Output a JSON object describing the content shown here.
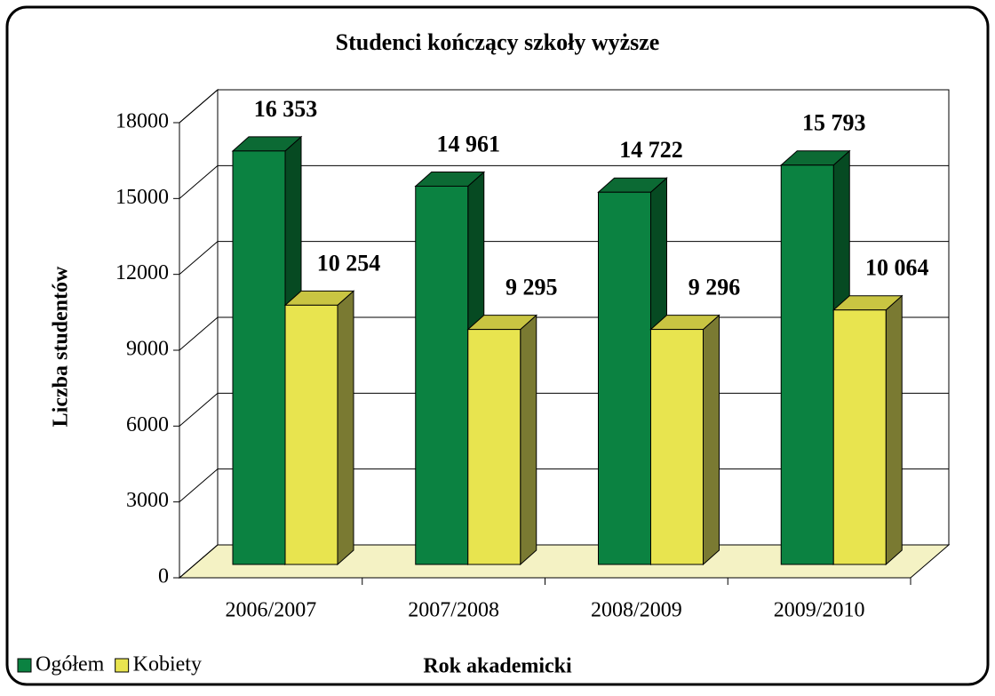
{
  "chart_data": {
    "type": "bar3d",
    "title": "Studenci kończący szkoły wyższe",
    "x_label": "Rok akademicki",
    "y_label": "Liczba studentów",
    "categories": [
      "2006/2007",
      "2007/2008",
      "2008/2009",
      "2009/2010"
    ],
    "series": [
      {
        "name": "Ogółem",
        "color": "#0b8241",
        "side_color": "#064a22",
        "top_color": "#0c6a34",
        "values": [
          16353,
          14961,
          14722,
          15793
        ],
        "value_labels": [
          "16 353",
          "14 961",
          "14 722",
          "15 793"
        ]
      },
      {
        "name": "Kobiety",
        "color": "#e8e44f",
        "side_color": "#7a7a32",
        "top_color": "#c9c542",
        "values": [
          10254,
          9295,
          9296,
          10064
        ],
        "value_labels": [
          "10 254",
          "9 295",
          "9 296",
          "10 064"
        ]
      }
    ],
    "ylim": [
      0,
      18000
    ],
    "yticks": [
      0,
      3000,
      6000,
      9000,
      12000,
      15000,
      18000
    ],
    "grid": true,
    "legend": "bottom-left"
  }
}
